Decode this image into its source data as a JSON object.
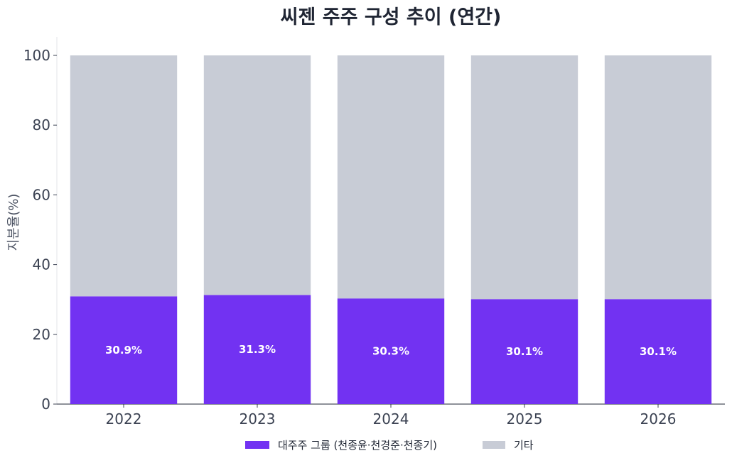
{
  "chart_data": {
    "type": "bar",
    "stacked": true,
    "title": "씨젠 주주 구성 추이 (연간)",
    "xlabel": "",
    "ylabel": "지분율(%)",
    "ylim": [
      0,
      100
    ],
    "yticks": [
      "0",
      "20",
      "40",
      "60",
      "80",
      "100"
    ],
    "categories": [
      "2022",
      "2023",
      "2024",
      "2025",
      "2026"
    ],
    "series": [
      {
        "name": "대주주 그룹 (천종윤·천경준·천종기)",
        "values": [
          30.9,
          31.3,
          30.3,
          30.1,
          30.1
        ],
        "labels": [
          "30.9%",
          "31.3%",
          "30.3%",
          "30.1%",
          "30.1%"
        ],
        "color": "#7232f2"
      },
      {
        "name": "기타",
        "values": [
          69.1,
          68.7,
          69.7,
          69.9,
          69.9
        ],
        "color": "#c8ccd6"
      }
    ],
    "grid": false,
    "legend_position": "bottom-center"
  }
}
